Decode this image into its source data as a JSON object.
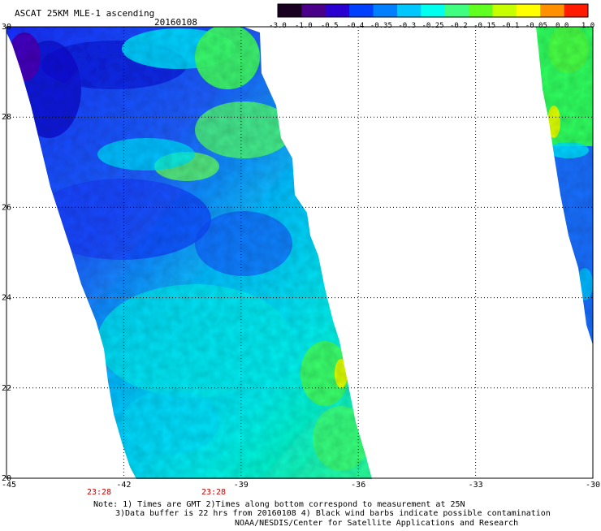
{
  "header": {
    "title": "ASCAT 25KM MLE-1 ascending",
    "date": "20160108"
  },
  "colorbar": {
    "labels": [
      "-3.0",
      "-1.0",
      "-0.5",
      "-0.4",
      "-0.35",
      "-0.3",
      "-0.25",
      "-0.2",
      "-0.15",
      "-0.1",
      "-0.05",
      "0.0",
      "1.0"
    ],
    "colors": [
      "#1a0020",
      "#4b008a",
      "#2a00d0",
      "#0040ff",
      "#0080ff",
      "#00c8ff",
      "#00ffee",
      "#40ff80",
      "#60ff20",
      "#c8ff00",
      "#ffff00",
      "#ff9000",
      "#ff1a00"
    ]
  },
  "map": {
    "lat_labels": [
      "30",
      "28",
      "26",
      "24",
      "22",
      "20"
    ],
    "lon_labels": [
      "-45",
      "-42",
      "-39",
      "-36",
      "-33",
      "-30"
    ],
    "time_labels": [
      "23:28",
      "23:28"
    ]
  },
  "notes": [
    "Note: 1) Times are GMT 2)Times along bottom correspond to measurement at 25N",
    "3)Data buffer is 22 hrs from 20160108 4) Black wind barbs indicate possible contamination",
    "NOAA/NESDIS/Center for Satellite Applications and Research"
  ]
}
